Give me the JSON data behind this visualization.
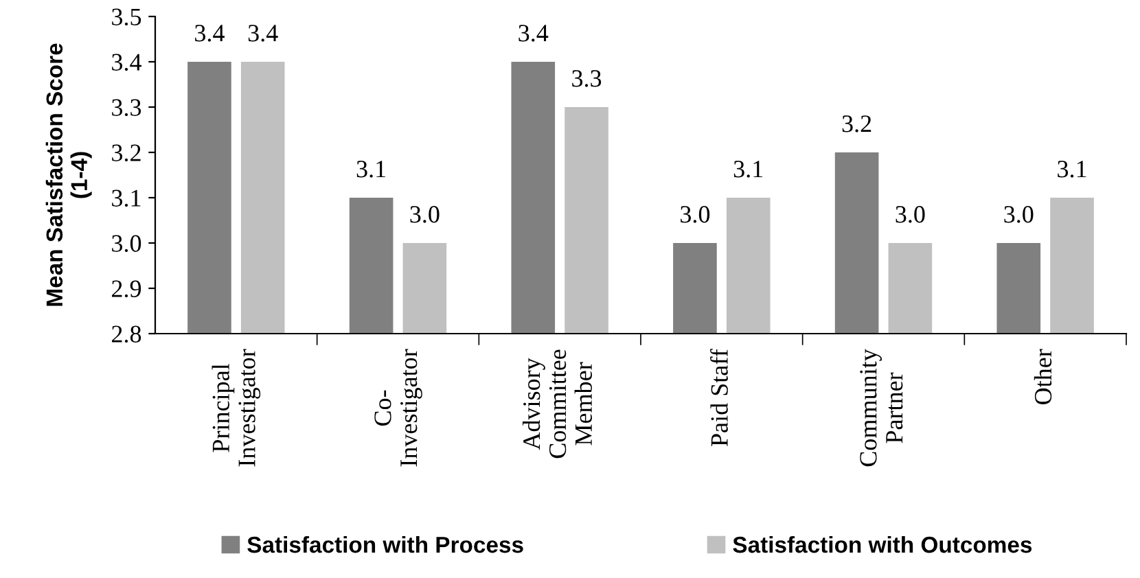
{
  "chart_data": {
    "type": "bar",
    "ylabel": "Mean Satisfaction Score\n(1-4)",
    "categories": [
      "Principal\nInvestigator",
      "Co-\nInvestigator",
      "Advisory\nCommittee\nMember",
      "Paid Staff",
      "Community\nPartner",
      "Other"
    ],
    "series": [
      {
        "name": "Satisfaction with Process",
        "color": "#808080",
        "values": [
          3.4,
          3.1,
          3.4,
          3.0,
          3.2,
          3.0
        ],
        "value_labels": [
          "3.4",
          "3.1",
          "3.4",
          "3.0",
          "3.2",
          "3.0"
        ]
      },
      {
        "name": "Satisfaction with Outcomes",
        "color": "#c0c0c0",
        "values": [
          3.4,
          3.0,
          3.3,
          3.1,
          3.0,
          3.1
        ],
        "value_labels": [
          "3.4",
          "3.0",
          "3.3",
          "3.1",
          "3.0",
          "3.1"
        ]
      }
    ],
    "ylim": [
      2.8,
      3.5
    ],
    "yticks": [
      2.8,
      2.9,
      {
        "value": 3,
        "label": "3.0"
      },
      3.1,
      3.2,
      3.3,
      3.4,
      3.5
    ],
    "grid": false,
    "legend": "bottom"
  }
}
